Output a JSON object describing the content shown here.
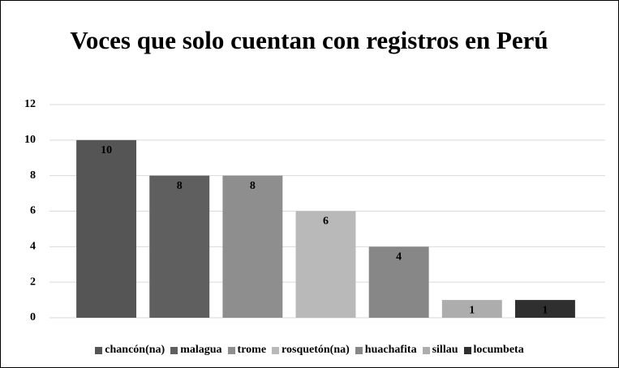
{
  "chart_data": {
    "type": "bar",
    "title": "Voces que solo cuentan con registros en Perú",
    "categories": [
      "chancón(na)",
      "malagua",
      "trome",
      "rosquetón(na)",
      "huachafita",
      "sillau",
      "locumbeta"
    ],
    "values": [
      10,
      8,
      8,
      6,
      4,
      1,
      1
    ],
    "colors": [
      "#555555",
      "#5f5f5f",
      "#8e8e8e",
      "#b9b9b9",
      "#878787",
      "#adadad",
      "#2f2f2f"
    ],
    "ylim": [
      0,
      12
    ],
    "yticks": [
      0,
      2,
      4,
      6,
      8,
      10,
      12
    ],
    "grid": true,
    "legend": "bottom"
  }
}
